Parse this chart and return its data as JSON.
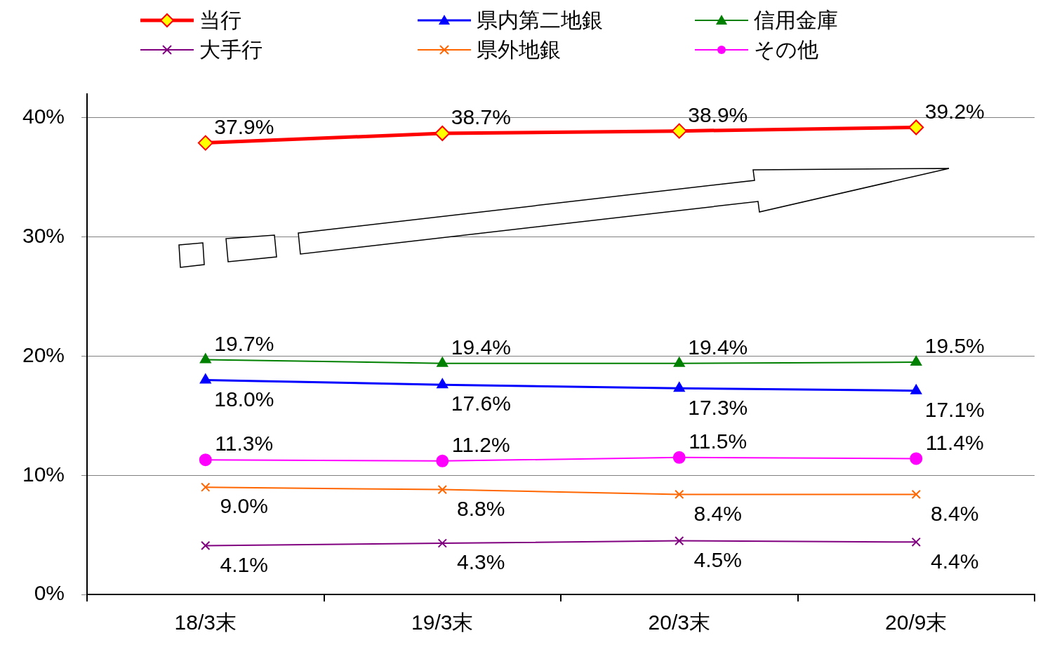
{
  "chart_data": {
    "type": "line",
    "categories": [
      "18/3末",
      "19/3末",
      "20/3末",
      "20/9末"
    ],
    "ylim": [
      0,
      42
    ],
    "yticks": [
      {
        "value": 0,
        "label": "0%"
      },
      {
        "value": 10,
        "label": "10%"
      },
      {
        "value": 20,
        "label": "20%"
      },
      {
        "value": 30,
        "label": "30%"
      },
      {
        "value": 40,
        "label": "40%"
      }
    ],
    "grid": "y",
    "legend": "top",
    "line_style": "solid",
    "series": [
      {
        "name": "当行",
        "color": "#ff0000",
        "marker": "diamond",
        "values": [
          37.9,
          38.7,
          38.9,
          39.2
        ],
        "value_labels": [
          "37.9%",
          "38.7%",
          "38.9%",
          "39.2%"
        ]
      },
      {
        "name": "県内第二地銀",
        "color": "#0000ff",
        "marker": "triangle",
        "values": [
          18.0,
          17.6,
          17.3,
          17.1
        ],
        "value_labels": [
          "18.0%",
          "17.6%",
          "17.3%",
          "17.1%"
        ]
      },
      {
        "name": "信用金庫",
        "color": "#008000",
        "marker": "triangle",
        "values": [
          19.7,
          19.4,
          19.4,
          19.5
        ],
        "value_labels": [
          "19.7%",
          "19.4%",
          "19.4%",
          "19.5%"
        ]
      },
      {
        "name": "大手行",
        "color": "#800080",
        "marker": "cross",
        "values": [
          4.1,
          4.3,
          4.5,
          4.4
        ],
        "value_labels": [
          "4.1%",
          "4.3%",
          "4.5%",
          "4.4%"
        ]
      },
      {
        "name": "県外地銀",
        "color": "#ff6600",
        "marker": "cross",
        "values": [
          9.0,
          8.8,
          8.4,
          8.4
        ],
        "value_labels": [
          "9.0%",
          "8.8%",
          "8.4%",
          "8.4%"
        ]
      },
      {
        "name": "その他",
        "color": "#ff00ff",
        "marker": "circle",
        "values": [
          11.3,
          11.2,
          11.5,
          11.4
        ],
        "value_labels": [
          "11.3%",
          "11.2%",
          "11.5%",
          "11.4%"
        ]
      }
    ]
  }
}
